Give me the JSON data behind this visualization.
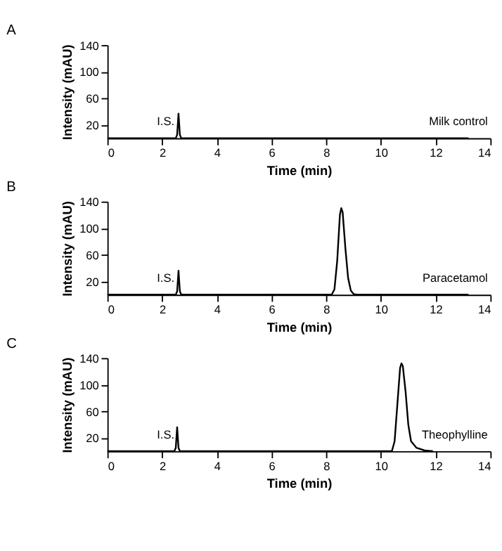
{
  "chart_data": [
    {
      "type": "line",
      "title": "A",
      "xlabel": "Time (min)",
      "ylabel": "Intensity (mAU)",
      "xlim": [
        0,
        14
      ],
      "xticks": [
        0,
        2,
        4,
        6,
        8,
        10,
        12,
        14
      ],
      "ylim": [
        0,
        140
      ],
      "yticks": [
        20,
        60,
        100,
        140
      ],
      "grid": false,
      "marker": "none",
      "line_style": "solid",
      "series": [
        {
          "color": "#000000",
          "x": [
            0,
            2.5,
            2.55,
            2.6,
            2.65,
            2.7,
            13.2
          ],
          "values": [
            0,
            0,
            5,
            37,
            5,
            0,
            0
          ]
        }
      ],
      "annotations": [
        "I.S.",
        "Milk control"
      ]
    },
    {
      "type": "line",
      "title": "B",
      "xlabel": "Time (min)",
      "ylabel": "Intensity (mAU)",
      "xlim": [
        0,
        14
      ],
      "xticks": [
        0,
        2,
        4,
        6,
        8,
        10,
        12,
        14
      ],
      "ylim": [
        0,
        140
      ],
      "yticks": [
        20,
        60,
        100,
        140
      ],
      "grid": false,
      "marker": "none",
      "line_style": "solid",
      "series": [
        {
          "color": "#000000",
          "x": [
            0,
            2.5,
            2.55,
            2.6,
            2.65,
            2.7,
            8.2,
            8.3,
            8.4,
            8.5,
            8.55,
            8.6,
            8.7,
            8.8,
            8.9,
            9.0,
            9.1,
            13.2
          ],
          "values": [
            0,
            0,
            5,
            36,
            5,
            0,
            0,
            8,
            50,
            120,
            130,
            124,
            70,
            25,
            6,
            1,
            0,
            0
          ]
        }
      ],
      "annotations": [
        "I.S.",
        "Paracetamol"
      ]
    },
    {
      "type": "line",
      "title": "C",
      "xlabel": "Time (min)",
      "ylabel": "Intensity (mAU)",
      "xlim": [
        0,
        14
      ],
      "xticks": [
        0,
        2,
        4,
        6,
        8,
        10,
        12,
        14
      ],
      "ylim": [
        0,
        140
      ],
      "yticks": [
        20,
        60,
        100,
        140
      ],
      "grid": false,
      "marker": "none",
      "line_style": "solid",
      "series": [
        {
          "color": "#000000",
          "x": [
            0,
            2.45,
            2.5,
            2.55,
            2.6,
            2.65,
            10.4,
            10.5,
            10.6,
            10.7,
            10.75,
            10.8,
            10.9,
            11.0,
            11.1,
            11.3,
            11.6,
            11.9
          ],
          "values": [
            0,
            0,
            5,
            36,
            5,
            0,
            0,
            15,
            70,
            125,
            132,
            128,
            90,
            40,
            15,
            5,
            1,
            0
          ]
        }
      ],
      "annotations": [
        "I.S.",
        "Theophylline"
      ]
    }
  ]
}
